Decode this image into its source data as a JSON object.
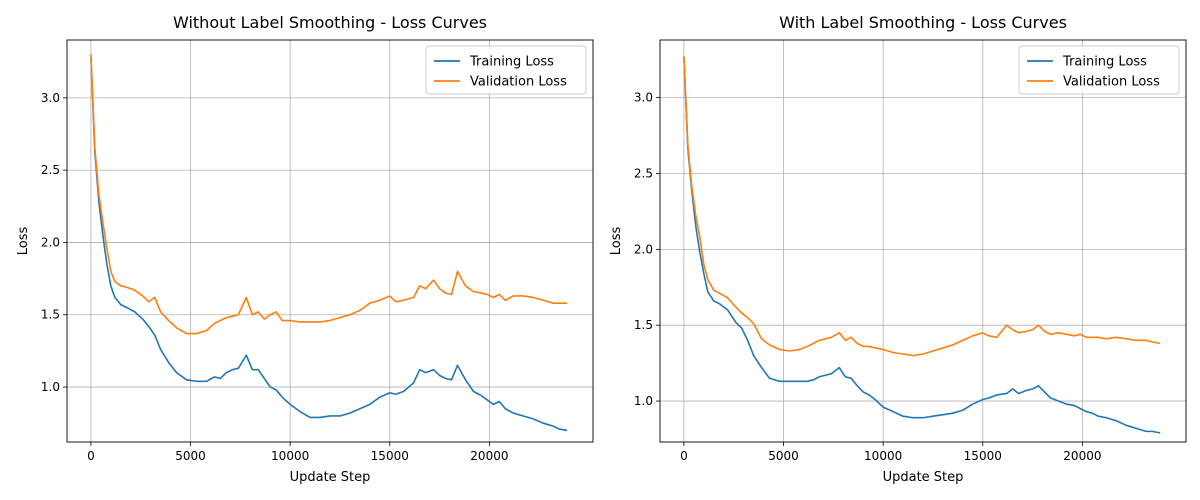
{
  "figure": {
    "colors": {
      "training": "#1f77b4",
      "validation": "#ff7f0e",
      "grid": "#b0b0b0"
    }
  },
  "chart_data": [
    {
      "type": "line",
      "title": "Without Label Smoothing - Loss Curves",
      "xlabel": "Update Step",
      "ylabel": "Loss",
      "xlim": [
        -1200,
        25200
      ],
      "ylim": [
        0.62,
        3.4
      ],
      "xticks": [
        0,
        5000,
        10000,
        15000,
        20000
      ],
      "yticks": [
        1.0,
        1.5,
        2.0,
        2.5,
        3.0
      ],
      "xtick_labels": [
        "0",
        "5000",
        "10000",
        "15000",
        "20000"
      ],
      "ytick_labels": [
        "1.0",
        "1.5",
        "2.0",
        "2.5",
        "3.0"
      ],
      "grid": true,
      "legend": "top-right",
      "series": [
        {
          "name": "Training Loss",
          "color": "#1f77b4",
          "x": [
            0,
            200,
            400,
            600,
            800,
            1000,
            1200,
            1500,
            1800,
            2200,
            2600,
            2900,
            3200,
            3500,
            3900,
            4300,
            4800,
            5300,
            5800,
            6200,
            6500,
            6800,
            7100,
            7400,
            7800,
            8100,
            8400,
            8700,
            9000,
            9300,
            9600,
            10000,
            10500,
            11000,
            11500,
            12000,
            12500,
            13000,
            13500,
            14000,
            14500,
            15000,
            15300,
            15700,
            16200,
            16500,
            16800,
            17200,
            17500,
            17800,
            18100,
            18400,
            18800,
            19200,
            19600,
            19900,
            20200,
            20500,
            20800,
            21200,
            21700,
            22200,
            22700,
            23200,
            23500,
            23900
          ],
          "y": [
            3.28,
            2.62,
            2.28,
            2.05,
            1.85,
            1.7,
            1.62,
            1.57,
            1.55,
            1.52,
            1.47,
            1.42,
            1.36,
            1.26,
            1.17,
            1.1,
            1.05,
            1.04,
            1.04,
            1.07,
            1.06,
            1.1,
            1.12,
            1.13,
            1.22,
            1.12,
            1.12,
            1.06,
            1.0,
            0.98,
            0.93,
            0.88,
            0.83,
            0.79,
            0.79,
            0.8,
            0.8,
            0.82,
            0.85,
            0.88,
            0.93,
            0.96,
            0.95,
            0.97,
            1.03,
            1.12,
            1.1,
            1.12,
            1.08,
            1.06,
            1.05,
            1.15,
            1.05,
            0.97,
            0.94,
            0.91,
            0.88,
            0.9,
            0.85,
            0.82,
            0.8,
            0.78,
            0.75,
            0.73,
            0.71,
            0.7
          ]
        },
        {
          "name": "Validation Loss",
          "color": "#ff7f0e",
          "x": [
            0,
            200,
            400,
            600,
            800,
            1000,
            1200,
            1500,
            1800,
            2200,
            2600,
            2900,
            3200,
            3500,
            3900,
            4300,
            4800,
            5300,
            5800,
            6200,
            6500,
            6800,
            7100,
            7400,
            7800,
            8100,
            8400,
            8700,
            9000,
            9300,
            9600,
            10000,
            10500,
            11000,
            11500,
            12000,
            12500,
            13000,
            13500,
            14000,
            14500,
            15000,
            15300,
            15700,
            16200,
            16500,
            16800,
            17200,
            17500,
            17800,
            18100,
            18400,
            18800,
            19200,
            19600,
            19900,
            20200,
            20500,
            20800,
            21200,
            21700,
            22200,
            22700,
            23200,
            23500,
            23900
          ],
          "y": [
            3.3,
            2.65,
            2.33,
            2.14,
            1.96,
            1.8,
            1.73,
            1.7,
            1.69,
            1.67,
            1.63,
            1.59,
            1.62,
            1.52,
            1.46,
            1.41,
            1.37,
            1.37,
            1.39,
            1.44,
            1.46,
            1.48,
            1.49,
            1.5,
            1.62,
            1.5,
            1.52,
            1.47,
            1.5,
            1.52,
            1.46,
            1.46,
            1.45,
            1.45,
            1.45,
            1.46,
            1.48,
            1.5,
            1.53,
            1.58,
            1.6,
            1.63,
            1.59,
            1.6,
            1.62,
            1.7,
            1.68,
            1.74,
            1.68,
            1.65,
            1.64,
            1.8,
            1.7,
            1.66,
            1.65,
            1.64,
            1.62,
            1.64,
            1.6,
            1.63,
            1.63,
            1.62,
            1.6,
            1.58,
            1.58,
            1.58
          ]
        }
      ]
    },
    {
      "type": "line",
      "title": "With Label Smoothing - Loss Curves",
      "xlabel": "Update Step",
      "ylabel": "Loss",
      "xlim": [
        -1200,
        25200
      ],
      "ylim": [
        0.73,
        3.38
      ],
      "xticks": [
        0,
        5000,
        10000,
        15000,
        20000
      ],
      "yticks": [
        1.0,
        1.5,
        2.0,
        2.5,
        3.0
      ],
      "xtick_labels": [
        "0",
        "5000",
        "10000",
        "15000",
        "20000"
      ],
      "ytick_labels": [
        "1.0",
        "1.5",
        "2.0",
        "2.5",
        "3.0"
      ],
      "grid": true,
      "legend": "top-right",
      "series": [
        {
          "name": "Training Loss",
          "color": "#1f77b4",
          "x": [
            0,
            200,
            400,
            600,
            800,
            1000,
            1200,
            1500,
            1800,
            2200,
            2600,
            2900,
            3200,
            3500,
            3900,
            4300,
            4800,
            5300,
            5800,
            6200,
            6500,
            6800,
            7100,
            7400,
            7800,
            8100,
            8400,
            8700,
            9000,
            9300,
            9600,
            10000,
            10500,
            11000,
            11500,
            12000,
            12500,
            13000,
            13500,
            14000,
            14500,
            15000,
            15300,
            15700,
            16200,
            16500,
            16800,
            17200,
            17500,
            17800,
            18100,
            18400,
            18800,
            19200,
            19600,
            19900,
            20200,
            20500,
            20800,
            21200,
            21700,
            22200,
            22700,
            23200,
            23500,
            23900
          ],
          "y": [
            3.27,
            2.66,
            2.38,
            2.15,
            1.98,
            1.84,
            1.72,
            1.66,
            1.64,
            1.6,
            1.52,
            1.48,
            1.4,
            1.3,
            1.22,
            1.15,
            1.13,
            1.13,
            1.13,
            1.13,
            1.14,
            1.16,
            1.17,
            1.18,
            1.22,
            1.16,
            1.15,
            1.1,
            1.06,
            1.04,
            1.01,
            0.96,
            0.93,
            0.9,
            0.89,
            0.89,
            0.9,
            0.91,
            0.92,
            0.94,
            0.98,
            1.01,
            1.02,
            1.04,
            1.05,
            1.08,
            1.05,
            1.07,
            1.08,
            1.1,
            1.06,
            1.02,
            1.0,
            0.98,
            0.97,
            0.95,
            0.93,
            0.92,
            0.9,
            0.89,
            0.87,
            0.84,
            0.82,
            0.8,
            0.8,
            0.79
          ]
        },
        {
          "name": "Validation Loss",
          "color": "#ff7f0e",
          "x": [
            0,
            200,
            400,
            600,
            800,
            1000,
            1200,
            1500,
            1800,
            2200,
            2600,
            2900,
            3200,
            3500,
            3900,
            4300,
            4800,
            5300,
            5800,
            6200,
            6500,
            6800,
            7100,
            7400,
            7800,
            8100,
            8400,
            8700,
            9000,
            9300,
            9600,
            10000,
            10500,
            11000,
            11500,
            12000,
            12500,
            13000,
            13500,
            14000,
            14500,
            15000,
            15300,
            15700,
            16200,
            16500,
            16800,
            17200,
            17500,
            17800,
            18100,
            18400,
            18800,
            19200,
            19600,
            19900,
            20200,
            20500,
            20800,
            21200,
            21700,
            22200,
            22700,
            23200,
            23500,
            23900
          ],
          "y": [
            3.27,
            2.68,
            2.41,
            2.22,
            2.08,
            1.9,
            1.8,
            1.73,
            1.71,
            1.68,
            1.62,
            1.58,
            1.55,
            1.51,
            1.41,
            1.37,
            1.34,
            1.33,
            1.34,
            1.36,
            1.38,
            1.4,
            1.41,
            1.42,
            1.45,
            1.4,
            1.42,
            1.38,
            1.36,
            1.36,
            1.35,
            1.34,
            1.32,
            1.31,
            1.3,
            1.31,
            1.33,
            1.35,
            1.37,
            1.4,
            1.43,
            1.45,
            1.43,
            1.42,
            1.5,
            1.47,
            1.45,
            1.46,
            1.47,
            1.5,
            1.46,
            1.44,
            1.45,
            1.44,
            1.43,
            1.44,
            1.42,
            1.42,
            1.42,
            1.41,
            1.42,
            1.41,
            1.4,
            1.4,
            1.39,
            1.38
          ]
        }
      ]
    }
  ]
}
